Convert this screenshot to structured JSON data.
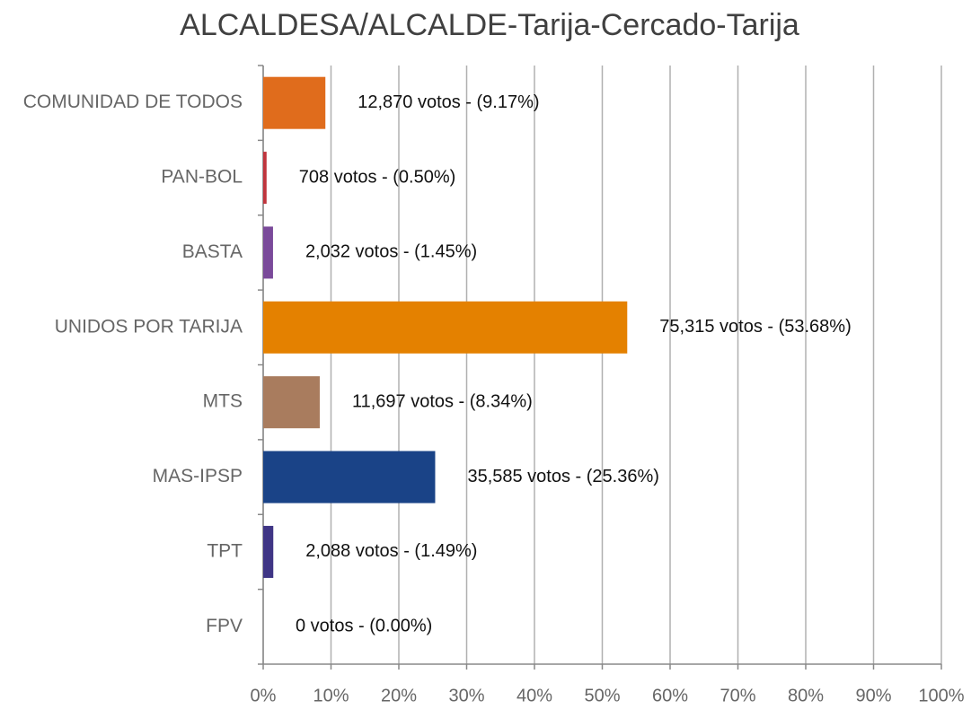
{
  "chart_data": {
    "type": "bar",
    "orientation": "horizontal",
    "title": "ALCALDESA/ALCALDE-Tarija-Cercado-Tarija",
    "categories": [
      "COMUNIDAD DE TODOS",
      "PAN-BOL",
      "BASTA",
      "UNIDOS POR TARIJA",
      "MTS",
      "MAS-IPSP",
      "TPT",
      "FPV"
    ],
    "values": [
      9.17,
      0.5,
      1.45,
      53.68,
      8.34,
      25.36,
      1.49,
      0.0
    ],
    "value_labels": [
      "12,870 votos - (9.17%)",
      "708 votos - (0.50%)",
      "2,032 votos - (1.45%)",
      "75,315 votos - (53.68%)",
      "11,697 votos - (8.34%)",
      "35,585 votos - (25.36%)",
      "2,088 votos - (1.49%)",
      "0 votos - (0.00%)"
    ],
    "colors": [
      "#e06c1c",
      "#c0343c",
      "#7a4a9a",
      "#e48100",
      "#a97c5e",
      "#1a4387",
      "#3f3585",
      "#888888"
    ],
    "xlim": [
      0,
      100
    ],
    "xticks": [
      {
        "value": 0,
        "label": "0%"
      },
      {
        "value": 10,
        "label": "10%"
      },
      {
        "value": 20,
        "label": "20%"
      },
      {
        "value": 30,
        "label": "30%"
      },
      {
        "value": 40,
        "label": "40%"
      },
      {
        "value": 50,
        "label": "50%"
      },
      {
        "value": 60,
        "label": "60%"
      },
      {
        "value": 70,
        "label": "70%"
      },
      {
        "value": 80,
        "label": "80%"
      },
      {
        "value": 90,
        "label": "90%"
      },
      {
        "value": 100,
        "label": "100%"
      }
    ],
    "grid": true
  }
}
